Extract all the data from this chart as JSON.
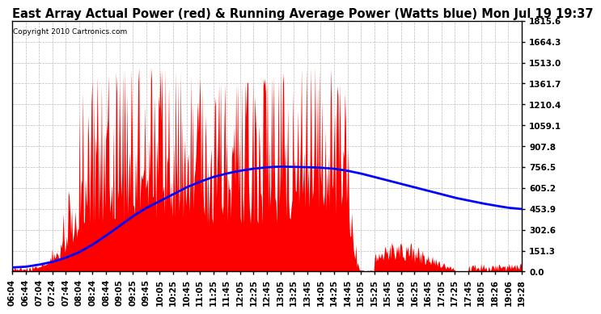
{
  "title": "East Array Actual Power (red) & Running Average Power (Watts blue) Mon Jul 19 19:37",
  "copyright": "Copyright 2010 Cartronics.com",
  "ylabel_ticks": [
    0.0,
    151.3,
    302.6,
    453.9,
    605.2,
    756.5,
    907.8,
    1059.1,
    1210.4,
    1361.7,
    1513.0,
    1664.3,
    1815.6
  ],
  "ylim_max": 1815.6,
  "bg_color": "#ffffff",
  "actual_color": "#ff0000",
  "avg_color": "#0000ff",
  "grid_color": "#bbbbbb",
  "title_fontsize": 10.5,
  "tick_fontsize": 7.5,
  "x_labels": [
    "06:04",
    "06:44",
    "07:04",
    "07:24",
    "07:44",
    "08:04",
    "08:24",
    "08:44",
    "09:05",
    "09:25",
    "09:45",
    "10:05",
    "10:25",
    "10:45",
    "11:05",
    "11:25",
    "11:45",
    "12:05",
    "12:25",
    "12:45",
    "13:05",
    "13:25",
    "13:45",
    "14:05",
    "14:25",
    "14:45",
    "15:05",
    "15:25",
    "15:45",
    "16:05",
    "16:25",
    "16:45",
    "17:05",
    "17:25",
    "17:45",
    "18:05",
    "18:26",
    "19:06",
    "19:28"
  ],
  "avg_y": [
    30,
    35,
    50,
    70,
    100,
    140,
    195,
    260,
    330,
    400,
    460,
    510,
    560,
    610,
    650,
    685,
    710,
    730,
    745,
    755,
    760,
    758,
    756,
    752,
    745,
    730,
    710,
    685,
    660,
    635,
    610,
    585,
    560,
    535,
    515,
    495,
    478,
    462,
    453
  ]
}
